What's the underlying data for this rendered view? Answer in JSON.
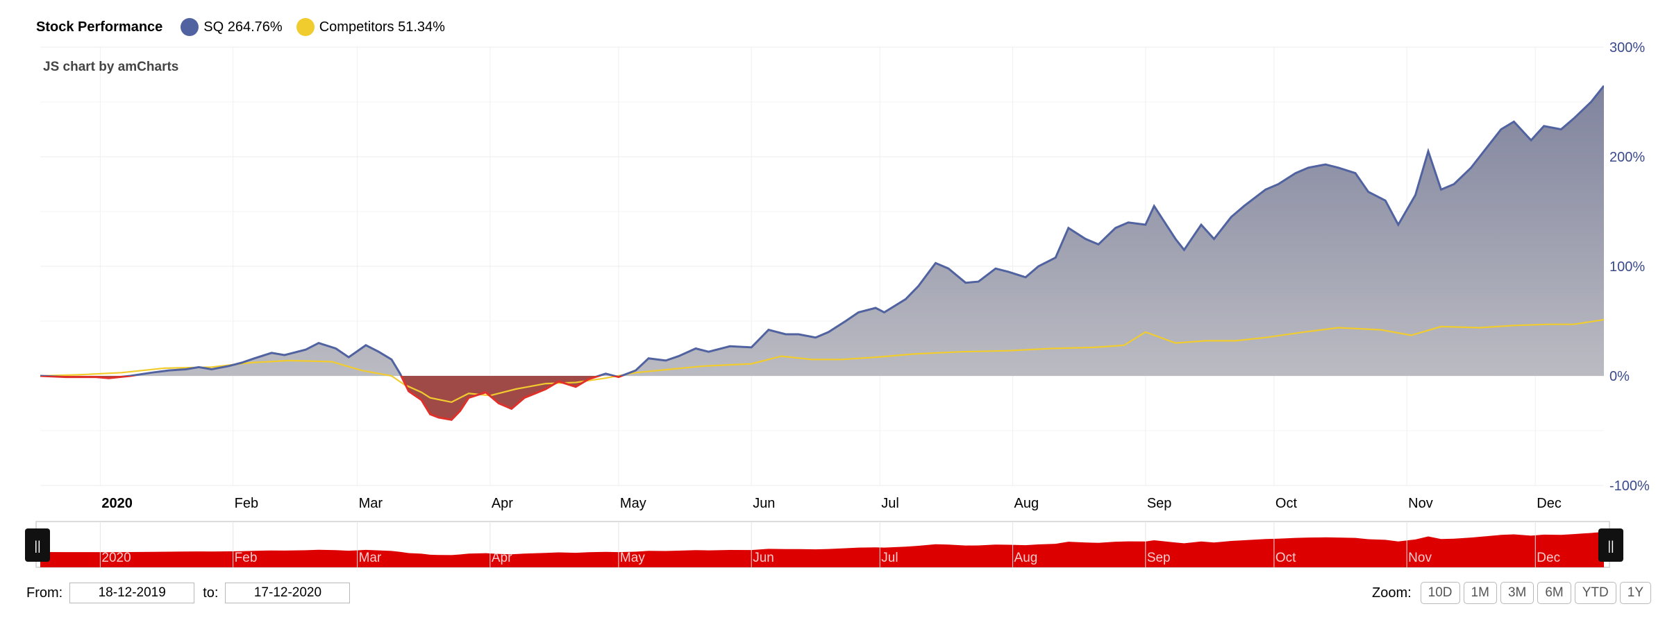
{
  "legend": {
    "title": "Stock Performance",
    "items": [
      {
        "label": "SQ 264.76%",
        "color": "#5062a0"
      },
      {
        "label": "Competitors 51.34%",
        "color": "#f1cc2e"
      }
    ]
  },
  "credit": "JS chart by amCharts",
  "controls": {
    "from_label": "From:",
    "from_value": "18-12-2019",
    "to_label": "to:",
    "to_value": "17-12-2020",
    "zoom_label": "Zoom:",
    "zoom_buttons": [
      "10D",
      "1M",
      "3M",
      "6M",
      "YTD",
      "1Y"
    ]
  },
  "scrollbar": {
    "handle_left": "||",
    "handle_right": "||"
  },
  "chart_data": {
    "type": "area",
    "x_start": "2019-12-18",
    "x_end": "2020-12-17",
    "ylim": [
      -100,
      300
    ],
    "y_ticks": [
      300,
      200,
      100,
      0,
      -100
    ],
    "y_tick_labels": [
      "300%",
      "200%",
      "100%",
      "0%",
      "-100%"
    ],
    "y_axis_side": "right",
    "x_ticks": [
      {
        "label": "2020",
        "date": "2020-01-01",
        "bold": true
      },
      {
        "label": "Feb",
        "date": "2020-02-01"
      },
      {
        "label": "Mar",
        "date": "2020-03-01"
      },
      {
        "label": "Apr",
        "date": "2020-04-01"
      },
      {
        "label": "May",
        "date": "2020-05-01"
      },
      {
        "label": "Jun",
        "date": "2020-06-01"
      },
      {
        "label": "Jul",
        "date": "2020-07-01"
      },
      {
        "label": "Aug",
        "date": "2020-08-01"
      },
      {
        "label": "Sep",
        "date": "2020-09-01"
      },
      {
        "label": "Oct",
        "date": "2020-10-01"
      },
      {
        "label": "Nov",
        "date": "2020-11-01"
      },
      {
        "label": "Dec",
        "date": "2020-12-01"
      }
    ],
    "grid": true,
    "legend_position": "top-left",
    "colors": {
      "positive_fill": "#8a8ea6",
      "negative_fill": "#a04a48",
      "negative_line": "#e0302a",
      "scrollbar_fill": "#dd0000"
    },
    "series": [
      {
        "name": "SQ",
        "color": "#5062a0",
        "points": [
          [
            "2019-12-18",
            0
          ],
          [
            "2019-12-24",
            -1
          ],
          [
            "2019-12-31",
            -1
          ],
          [
            "2020-01-03",
            -2
          ],
          [
            "2020-01-08",
            0
          ],
          [
            "2020-01-13",
            3
          ],
          [
            "2020-01-17",
            5
          ],
          [
            "2020-01-21",
            6
          ],
          [
            "2020-01-24",
            8
          ],
          [
            "2020-01-27",
            6
          ],
          [
            "2020-01-31",
            9
          ],
          [
            "2020-02-03",
            12
          ],
          [
            "2020-02-06",
            16
          ],
          [
            "2020-02-10",
            21
          ],
          [
            "2020-02-13",
            19
          ],
          [
            "2020-02-18",
            24
          ],
          [
            "2020-02-21",
            30
          ],
          [
            "2020-02-25",
            25
          ],
          [
            "2020-02-28",
            17
          ],
          [
            "2020-03-03",
            28
          ],
          [
            "2020-03-06",
            22
          ],
          [
            "2020-03-09",
            15
          ],
          [
            "2020-03-11",
            2
          ],
          [
            "2020-03-13",
            -14
          ],
          [
            "2020-03-16",
            -22
          ],
          [
            "2020-03-18",
            -35
          ],
          [
            "2020-03-20",
            -38
          ],
          [
            "2020-03-23",
            -40
          ],
          [
            "2020-03-25",
            -32
          ],
          [
            "2020-03-27",
            -20
          ],
          [
            "2020-03-31",
            -15
          ],
          [
            "2020-04-03",
            -25
          ],
          [
            "2020-04-06",
            -30
          ],
          [
            "2020-04-09",
            -20
          ],
          [
            "2020-04-14",
            -12
          ],
          [
            "2020-04-17",
            -5
          ],
          [
            "2020-04-21",
            -10
          ],
          [
            "2020-04-24",
            -3
          ],
          [
            "2020-04-28",
            2
          ],
          [
            "2020-05-01",
            -1
          ],
          [
            "2020-05-05",
            5
          ],
          [
            "2020-05-08",
            16
          ],
          [
            "2020-05-12",
            14
          ],
          [
            "2020-05-15",
            18
          ],
          [
            "2020-05-19",
            25
          ],
          [
            "2020-05-22",
            22
          ],
          [
            "2020-05-27",
            27
          ],
          [
            "2020-06-01",
            26
          ],
          [
            "2020-06-05",
            42
          ],
          [
            "2020-06-09",
            38
          ],
          [
            "2020-06-12",
            38
          ],
          [
            "2020-06-16",
            35
          ],
          [
            "2020-06-19",
            40
          ],
          [
            "2020-06-23",
            50
          ],
          [
            "2020-06-26",
            58
          ],
          [
            "2020-06-30",
            62
          ],
          [
            "2020-07-02",
            58
          ],
          [
            "2020-07-07",
            70
          ],
          [
            "2020-07-10",
            82
          ],
          [
            "2020-07-14",
            103
          ],
          [
            "2020-07-17",
            98
          ],
          [
            "2020-07-21",
            85
          ],
          [
            "2020-07-24",
            86
          ],
          [
            "2020-07-28",
            98
          ],
          [
            "2020-07-31",
            95
          ],
          [
            "2020-08-04",
            90
          ],
          [
            "2020-08-07",
            100
          ],
          [
            "2020-08-11",
            108
          ],
          [
            "2020-08-14",
            135
          ],
          [
            "2020-08-18",
            125
          ],
          [
            "2020-08-21",
            120
          ],
          [
            "2020-08-25",
            135
          ],
          [
            "2020-08-28",
            140
          ],
          [
            "2020-09-01",
            138
          ],
          [
            "2020-09-03",
            155
          ],
          [
            "2020-09-08",
            125
          ],
          [
            "2020-09-10",
            115
          ],
          [
            "2020-09-14",
            138
          ],
          [
            "2020-09-17",
            125
          ],
          [
            "2020-09-21",
            145
          ],
          [
            "2020-09-24",
            155
          ],
          [
            "2020-09-29",
            170
          ],
          [
            "2020-10-02",
            175
          ],
          [
            "2020-10-06",
            185
          ],
          [
            "2020-10-09",
            190
          ],
          [
            "2020-10-13",
            193
          ],
          [
            "2020-10-16",
            190
          ],
          [
            "2020-10-20",
            185
          ],
          [
            "2020-10-23",
            168
          ],
          [
            "2020-10-27",
            160
          ],
          [
            "2020-10-30",
            138
          ],
          [
            "2020-11-03",
            165
          ],
          [
            "2020-11-06",
            205
          ],
          [
            "2020-11-09",
            170
          ],
          [
            "2020-11-12",
            175
          ],
          [
            "2020-11-16",
            190
          ],
          [
            "2020-11-19",
            205
          ],
          [
            "2020-11-23",
            225
          ],
          [
            "2020-11-26",
            232
          ],
          [
            "2020-11-30",
            215
          ],
          [
            "2020-12-03",
            228
          ],
          [
            "2020-12-07",
            225
          ],
          [
            "2020-12-10",
            235
          ],
          [
            "2020-12-14",
            250
          ],
          [
            "2020-12-17",
            264.76
          ]
        ]
      },
      {
        "name": "Competitors",
        "color": "#f1cc2e",
        "points": [
          [
            "2019-12-18",
            0
          ],
          [
            "2019-12-27",
            1
          ],
          [
            "2020-01-06",
            3
          ],
          [
            "2020-01-16",
            7
          ],
          [
            "2020-01-27",
            8
          ],
          [
            "2020-02-05",
            12
          ],
          [
            "2020-02-14",
            14
          ],
          [
            "2020-02-24",
            13
          ],
          [
            "2020-03-02",
            5
          ],
          [
            "2020-03-09",
            0
          ],
          [
            "2020-03-12",
            -8
          ],
          [
            "2020-03-16",
            -15
          ],
          [
            "2020-03-18",
            -20
          ],
          [
            "2020-03-23",
            -24
          ],
          [
            "2020-03-27",
            -16
          ],
          [
            "2020-04-01",
            -18
          ],
          [
            "2020-04-07",
            -12
          ],
          [
            "2020-04-14",
            -7
          ],
          [
            "2020-04-21",
            -6
          ],
          [
            "2020-04-28",
            -2
          ],
          [
            "2020-05-05",
            3
          ],
          [
            "2020-05-13",
            6
          ],
          [
            "2020-05-21",
            9
          ],
          [
            "2020-06-01",
            11
          ],
          [
            "2020-06-08",
            18
          ],
          [
            "2020-06-15",
            15
          ],
          [
            "2020-06-22",
            15
          ],
          [
            "2020-06-30",
            17
          ],
          [
            "2020-07-09",
            20
          ],
          [
            "2020-07-20",
            22
          ],
          [
            "2020-07-31",
            23
          ],
          [
            "2020-08-10",
            25
          ],
          [
            "2020-08-20",
            26
          ],
          [
            "2020-08-27",
            28
          ],
          [
            "2020-09-01",
            40
          ],
          [
            "2020-09-08",
            30
          ],
          [
            "2020-09-15",
            32
          ],
          [
            "2020-09-22",
            32
          ],
          [
            "2020-09-29",
            35
          ],
          [
            "2020-10-08",
            40
          ],
          [
            "2020-10-16",
            44
          ],
          [
            "2020-10-26",
            42
          ],
          [
            "2020-11-02",
            37
          ],
          [
            "2020-11-09",
            45
          ],
          [
            "2020-11-18",
            44
          ],
          [
            "2020-11-26",
            46
          ],
          [
            "2020-12-04",
            47
          ],
          [
            "2020-12-10",
            47
          ],
          [
            "2020-12-17",
            51.34
          ]
        ]
      }
    ]
  }
}
